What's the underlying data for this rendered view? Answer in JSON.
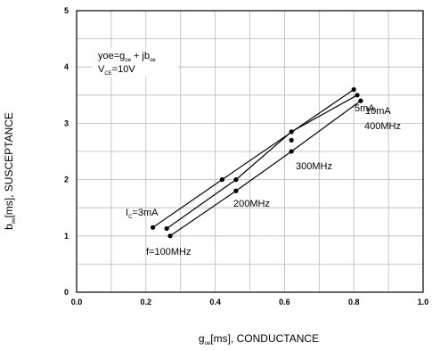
{
  "chart_data": {
    "type": "line",
    "xlabel": {
      "main": "g",
      "sub": "oe",
      "rest": "[ms], CONDUCTANCE"
    },
    "ylabel": {
      "main": "b",
      "sub": "oe",
      "rest": "[ms], SUSCEPTANCE"
    },
    "xlim": [
      0.0,
      1.0
    ],
    "ylim": [
      0,
      5
    ],
    "x_ticks": [
      "0.0",
      "0.2",
      "0.4",
      "0.6",
      "0.8",
      "1.0"
    ],
    "y_ticks": [
      "0",
      "1",
      "2",
      "3",
      "4",
      "5"
    ],
    "x_minor_step": 0.1,
    "y_minor_step": 0.5,
    "grid": true,
    "series": [
      {
        "name": "3mA",
        "x": [
          0.22,
          0.42,
          0.8
        ],
        "y": [
          1.15,
          2.0,
          3.6
        ]
      },
      {
        "name": "5mA",
        "x": [
          0.26,
          0.46,
          0.62,
          0.81
        ],
        "y": [
          1.13,
          2.0,
          2.85,
          3.5
        ]
      },
      {
        "name": "10mA",
        "x": [
          0.27,
          0.46,
          0.62,
          0.82
        ],
        "y": [
          1.0,
          1.8,
          2.5,
          3.4
        ]
      }
    ],
    "extra_points": [
      {
        "x": 0.62,
        "y": 2.7
      }
    ],
    "legend_box": {
      "line1": {
        "t1": "yoe=g",
        "s1": "oe",
        "t2": " + jb",
        "s2": "oe"
      },
      "line2": {
        "t1": "V",
        "s1": "CE",
        "t2": "=10V"
      }
    },
    "annotations": {
      "ic": {
        "main": "I",
        "sub": "C",
        "rest": "=3mA"
      },
      "i5": "5mA",
      "i10": "10mA",
      "f100": "f=100MHz",
      "f200": "200MHz",
      "f300": "300MHz",
      "f400": "400MHz"
    }
  }
}
